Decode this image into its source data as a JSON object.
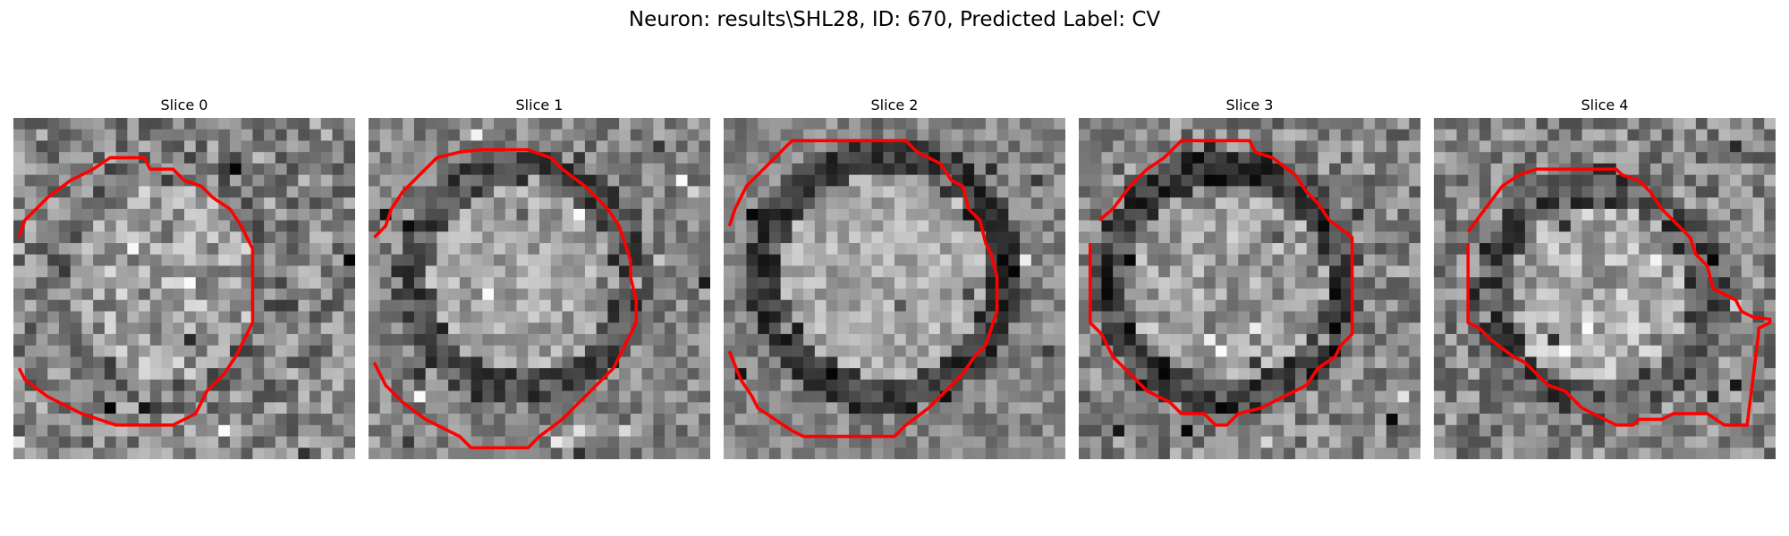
{
  "figure": {
    "title": "Neuron: results\\SHL28, ID: 670, Predicted Label: CV",
    "contour_color": "#ff0000",
    "colormap": "grayscale",
    "grid_size": 30
  },
  "panels": [
    {
      "title": "Slice 0"
    },
    {
      "title": "Slice 1"
    },
    {
      "title": "Slice 2"
    },
    {
      "title": "Slice 3"
    },
    {
      "title": "Slice 4"
    }
  ]
}
